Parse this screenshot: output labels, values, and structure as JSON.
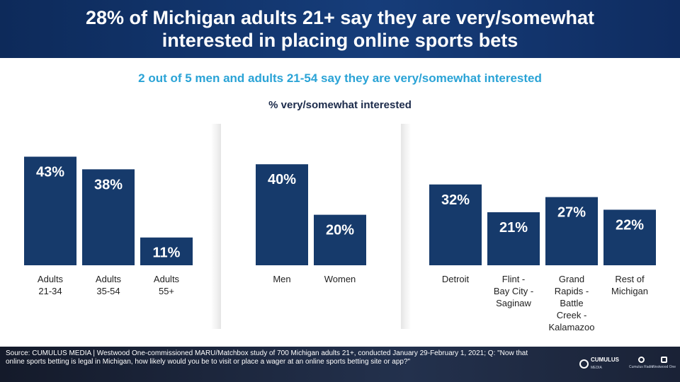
{
  "header": {
    "title_line1": "28% of Michigan adults 21+ say they are very/somewhat",
    "title_line2": "interested in placing online sports bets"
  },
  "subtitle": "2 out of 5 men and adults 21-54 say they are  very/somewhat interested",
  "chart_data": {
    "type": "bar",
    "title": "% very/somewhat interested",
    "xlabel": "",
    "ylabel": "",
    "ylim": [
      0,
      50
    ],
    "grid": false,
    "legend": "none",
    "bar_color": "#163a6b",
    "label_color": "#ffffff",
    "groups": [
      {
        "categories": [
          [
            "Adults",
            "21-34"
          ],
          [
            "Adults",
            "35-54"
          ],
          [
            "Adults",
            "55+"
          ]
        ],
        "values": [
          43,
          38,
          11
        ],
        "labels": [
          "43%",
          "38%",
          "11%"
        ]
      },
      {
        "categories": [
          [
            "Men"
          ],
          [
            "Women"
          ]
        ],
        "values": [
          40,
          20
        ],
        "labels": [
          "40%",
          "20%"
        ]
      },
      {
        "categories": [
          [
            "Detroit"
          ],
          [
            "Flint -",
            "Bay City -",
            "Saginaw"
          ],
          [
            "Grand",
            "Rapids -",
            "Battle",
            "Creek -",
            "Kalamazoo"
          ],
          [
            "Rest of",
            "Michigan"
          ]
        ],
        "values": [
          32,
          21,
          27,
          22
        ],
        "labels": [
          "32%",
          "21%",
          "27%",
          "22%"
        ]
      }
    ]
  },
  "footer": {
    "source": "Source: CUMULUS MEDIA | Westwood One-commissioned  MARU/Matchbox study of 700 Michigan adults 21+, conducted January 29-February 1, 2021; Q: \"Now that online sports betting is legal in Michigan, how likely would you be to visit or place a wager at an online sports betting site or app?\"",
    "logo_main": "CUMULUS",
    "logo_main_sub": "MEDIA",
    "logo_radio": "Cumulus Radio",
    "logo_wwo": "Westwood One"
  }
}
